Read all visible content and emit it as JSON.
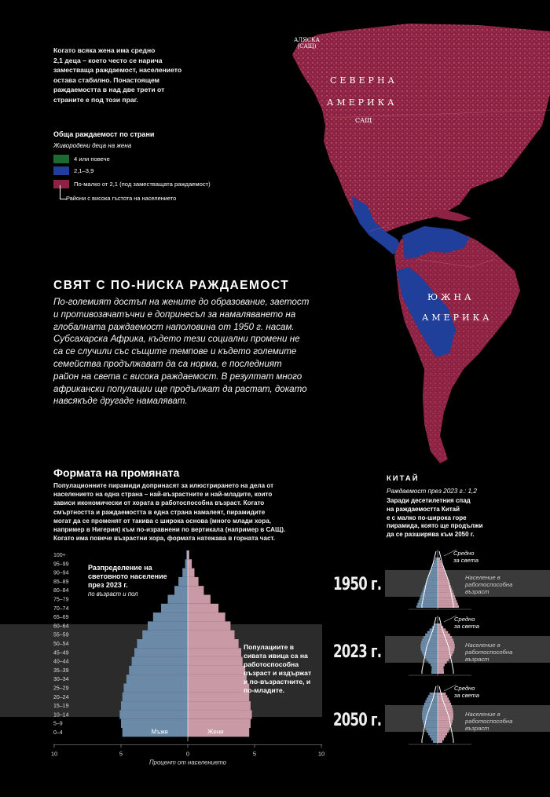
{
  "intro": {
    "lines": [
      "Когато всяка жена има средно",
      "2,1 деца – което често се нарича",
      "заместваща раждаемост, населението",
      "остава стабилно. Понастоящем",
      "раждаемостта в над две трети от",
      "страните е под този праг."
    ]
  },
  "legend": {
    "title": "Обща раждаемост по страни",
    "subtitle": "Живородени деца на жена",
    "items": [
      {
        "label": "4 или повече",
        "color": "#2fae4f"
      },
      {
        "label": "2,1–3,9",
        "color": "#2a58c8"
      },
      {
        "label": "По-малко от 2,1 (под заместващата раждаемост)",
        "color": "#c23a6b"
      }
    ],
    "dense_label": "Райони с висока гъстота на населението"
  },
  "map": {
    "labels": {
      "alaska_1": "АЛЯСКА",
      "alaska_2": "(САЩ)",
      "north_1": "СЕВЕРНА",
      "north_2": "АМЕРИКА",
      "usa": "САЩ",
      "south_1": "ЮЖНА",
      "south_2": "АМЕРИКА"
    },
    "colors": {
      "red": "#8e2244",
      "red_light": "#c23a6b",
      "blue": "#1f3f9a",
      "green": "#2fae4f"
    }
  },
  "section1": {
    "heading": "СВЯТ С ПО-НИСКА РАЖДАЕМОСТ",
    "lines": [
      "По-големият достъп на жените до образование, заетост",
      "и противозачатъчни е допринесъл за намаляването на",
      "глобалната раждаемост наполовина от 1950 г. насам.",
      "Субсахарска Африка, където тези социални промени не",
      "са се случили със същите темпове и където големите",
      "семейства продължават да са норма, е последният",
      "район на света с висока раждаемост. В резултат много",
      "африкански популации ще продължат да растат, докато",
      "навсякъде другаде намаляват."
    ]
  },
  "section2": {
    "heading": "Формата на промяната",
    "lines": [
      "Популационните пирамиди допринасят за илюстрирането на дела от",
      "населението на една страна – най-възрастните и най-младите, които",
      "зависи икономически от хората в работоспособна възраст. Когато",
      "смъртността и раждаемостта в една страна намалеят, пирамидите",
      "могат да се променят от такива с широка основа (много млади хора,",
      "например в Нигерия) към по-изравнени по вертикала (например в САЩ).",
      "Когато има повече възрастни хора, формата натежава в горната част."
    ]
  },
  "pyramid": {
    "title_1": "Разпределение на",
    "title_2": "световното население",
    "title_3": "през 2023 г.",
    "subtitle": "по възраст и пол",
    "age_groups": [
      "100+",
      "95–99",
      "90–94",
      "85–89",
      "80–84",
      "75–79",
      "70–74",
      "65–69",
      "60–64",
      "55–59",
      "50–54",
      "45–49",
      "40–44",
      "35–39",
      "30–34",
      "25–29",
      "20–24",
      "15–19",
      "10–14",
      "5–9",
      "0–4"
    ],
    "male_pct": [
      0.1,
      0.2,
      0.4,
      0.7,
      1.0,
      1.5,
      2.0,
      2.6,
      3.0,
      3.4,
      3.8,
      4.0,
      4.2,
      4.4,
      4.6,
      4.8,
      4.9,
      5.0,
      5.1,
      5.0,
      4.9
    ],
    "female_pct": [
      0.1,
      0.3,
      0.5,
      0.8,
      1.2,
      1.7,
      2.3,
      2.8,
      3.2,
      3.5,
      3.8,
      4.0,
      4.1,
      4.3,
      4.4,
      4.6,
      4.6,
      4.7,
      4.8,
      4.7,
      4.6
    ],
    "x_ticks": [
      "10",
      "5",
      "0",
      "5",
      "10"
    ],
    "xlabel": "Процент от населението",
    "male_label": "Мъже",
    "female_label": "Жени",
    "male_color": "#6b8aa8",
    "female_color": "#c99aa5",
    "band_note_lines": [
      "Популациите в",
      "сивата ивица са на",
      "работоспособна",
      "възраст и издържат",
      "и по-възрастните, и",
      "по-младите."
    ]
  },
  "china": {
    "title": "КИТАЙ",
    "subtitle": "Раждаемост през 2023 г.: 1,2",
    "lines": [
      "Заради десетилетния спад",
      "на раждаемостта Китай",
      "е с малко по-широка горе",
      "пирамида, която ще продължи",
      "да се разширява към 2050 г."
    ],
    "years": [
      "1950 г.",
      "2023 г.",
      "2050 г."
    ],
    "avg_label_1": "Средно",
    "avg_label_2": "за света",
    "work_label_1": "Население в",
    "work_label_2": "работоспособна",
    "work_label_3": "възраст"
  }
}
